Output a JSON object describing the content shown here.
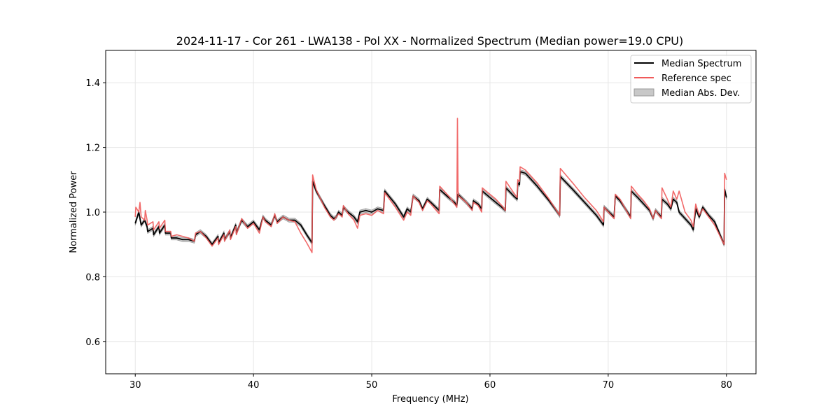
{
  "chart_data": {
    "type": "line",
    "title": "2024-11-17 - Cor 261 - LWA138 - Pol XX - Normalized Spectrum (Median power=19.0 CPU)",
    "xlabel": "Frequency (MHz)",
    "ylabel": "Normalized Power",
    "xlim": [
      27.5,
      82.5
    ],
    "ylim": [
      0.5,
      1.5
    ],
    "xticks": [
      30,
      40,
      50,
      60,
      70,
      80
    ],
    "yticks": [
      0.6,
      0.8,
      1.0,
      1.2,
      1.4
    ],
    "xtick_labels": [
      "30",
      "40",
      "50",
      "60",
      "70",
      "80"
    ],
    "ytick_labels": [
      "0.6",
      "0.8",
      "1.0",
      "1.2",
      "1.4"
    ],
    "grid": true,
    "legend_position": "top-right",
    "legend": [
      "Median Spectrum",
      "Reference spec",
      "Median Abs. Dev."
    ],
    "mad_width": 0.006,
    "series": [
      {
        "name": "Median Spectrum",
        "color": "#000000",
        "x": [
          30.0,
          30.3,
          30.5,
          30.8,
          31.0,
          31.05,
          31.5,
          31.55,
          32.0,
          32.05,
          32.5,
          32.55,
          33.0,
          33.05,
          33.5,
          34.0,
          34.5,
          35.0,
          35.1,
          35.5,
          36.0,
          36.5,
          37.0,
          37.05,
          37.5,
          37.55,
          38.0,
          38.05,
          38.5,
          38.55,
          39.0,
          39.5,
          40.0,
          40.5,
          40.8,
          41.0,
          41.5,
          41.8,
          42.0,
          42.5,
          43.0,
          43.5,
          44.0,
          44.5,
          44.95,
          45.0,
          45.3,
          46.0,
          46.5,
          46.8,
          47.0,
          47.2,
          47.5,
          47.6,
          48.0,
          48.5,
          48.8,
          49.0,
          49.5,
          50.0,
          50.5,
          51.0,
          51.1,
          52.0,
          52.7,
          53.0,
          53.3,
          53.5,
          54.0,
          54.3,
          54.7,
          55.0,
          55.7,
          55.75,
          56.5,
          57.0,
          57.2,
          57.3,
          58.0,
          58.5,
          58.6,
          59.0,
          59.3,
          59.35,
          60.0,
          60.5,
          61.0,
          61.3,
          61.35,
          62.0,
          62.3,
          62.35,
          62.5,
          62.55,
          63.0,
          64.0,
          65.0,
          65.9,
          65.95,
          67.0,
          68.0,
          69.0,
          69.6,
          69.65,
          70.5,
          70.6,
          71.0,
          71.9,
          71.95,
          72.5,
          73.0,
          73.5,
          73.8,
          74.0,
          74.5,
          74.55,
          75.0,
          75.3,
          75.5,
          75.8,
          76.0,
          76.5,
          77.0,
          77.2,
          77.4,
          77.7,
          78.0,
          78.5,
          79.0,
          79.8,
          79.85,
          80.0
        ],
        "values": [
          0.965,
          1.0,
          0.96,
          0.975,
          0.955,
          0.94,
          0.95,
          0.93,
          0.955,
          0.935,
          0.96,
          0.935,
          0.935,
          0.92,
          0.92,
          0.915,
          0.915,
          0.91,
          0.93,
          0.94,
          0.925,
          0.9,
          0.925,
          0.905,
          0.935,
          0.915,
          0.94,
          0.92,
          0.96,
          0.935,
          0.975,
          0.955,
          0.97,
          0.945,
          0.985,
          0.975,
          0.96,
          0.99,
          0.97,
          0.985,
          0.975,
          0.975,
          0.96,
          0.93,
          0.905,
          1.095,
          1.065,
          1.02,
          0.99,
          0.98,
          0.985,
          1.0,
          0.99,
          1.015,
          1.0,
          0.985,
          0.97,
          1.0,
          1.005,
          1.0,
          1.01,
          1.005,
          1.065,
          1.025,
          0.985,
          1.01,
          1.0,
          1.05,
          1.035,
          1.01,
          1.04,
          1.03,
          1.005,
          1.07,
          1.045,
          1.03,
          1.02,
          1.055,
          1.03,
          1.01,
          1.035,
          1.025,
          1.01,
          1.065,
          1.045,
          1.03,
          1.015,
          1.005,
          1.075,
          1.05,
          1.04,
          1.09,
          1.085,
          1.125,
          1.12,
          1.08,
          1.035,
          0.99,
          1.11,
          1.07,
          1.03,
          0.99,
          0.96,
          1.015,
          0.985,
          1.05,
          1.035,
          0.985,
          1.065,
          1.045,
          1.025,
          1.005,
          0.98,
          1.005,
          0.985,
          1.04,
          1.025,
          1.01,
          1.04,
          1.03,
          1.0,
          0.98,
          0.96,
          0.945,
          1.01,
          0.985,
          1.015,
          0.99,
          0.97,
          0.9,
          1.07,
          1.045
        ]
      },
      {
        "name": "Reference spec",
        "color": "#f05a5a",
        "x": [
          30.0,
          30.05,
          30.3,
          30.4,
          30.5,
          30.8,
          30.85,
          31.0,
          31.05,
          31.5,
          31.55,
          32.0,
          32.05,
          32.5,
          32.55,
          33.0,
          33.05,
          33.5,
          34.0,
          34.5,
          35.0,
          35.1,
          35.5,
          36.0,
          36.5,
          37.0,
          37.05,
          37.5,
          37.55,
          38.0,
          38.05,
          38.5,
          38.55,
          39.0,
          39.5,
          40.0,
          40.5,
          40.8,
          41.0,
          41.5,
          41.8,
          42.0,
          42.5,
          43.0,
          43.5,
          44.0,
          44.5,
          44.95,
          45.0,
          45.3,
          46.0,
          46.5,
          46.8,
          47.0,
          47.2,
          47.5,
          47.6,
          48.0,
          48.5,
          48.8,
          49.0,
          49.5,
          50.0,
          50.5,
          51.0,
          51.1,
          52.0,
          52.7,
          53.0,
          53.3,
          53.5,
          54.0,
          54.3,
          54.7,
          55.0,
          55.7,
          55.75,
          56.5,
          57.0,
          57.2,
          57.25,
          57.3,
          57.35,
          58.0,
          58.5,
          58.6,
          59.0,
          59.3,
          59.35,
          60.0,
          60.5,
          61.0,
          61.3,
          61.35,
          62.0,
          62.3,
          62.35,
          62.5,
          62.55,
          63.0,
          64.0,
          65.0,
          65.9,
          65.95,
          67.0,
          68.0,
          69.0,
          69.6,
          69.65,
          70.5,
          70.6,
          71.0,
          71.9,
          71.95,
          72.5,
          73.0,
          73.5,
          73.8,
          74.0,
          74.5,
          74.55,
          75.0,
          75.3,
          75.5,
          75.8,
          76.0,
          76.5,
          77.0,
          77.2,
          77.4,
          77.7,
          78.0,
          78.5,
          79.0,
          79.8,
          79.85,
          80.0
        ],
        "values": [
          0.985,
          1.015,
          1.0,
          1.03,
          0.985,
          0.975,
          1.005,
          0.975,
          0.96,
          0.97,
          0.945,
          0.97,
          0.95,
          0.975,
          0.94,
          0.94,
          0.925,
          0.93,
          0.925,
          0.92,
          0.91,
          0.935,
          0.94,
          0.92,
          0.895,
          0.92,
          0.9,
          0.93,
          0.91,
          0.945,
          0.915,
          0.955,
          0.93,
          0.98,
          0.95,
          0.965,
          0.935,
          0.985,
          0.97,
          0.955,
          0.995,
          0.965,
          0.985,
          0.975,
          0.97,
          0.935,
          0.905,
          0.875,
          1.115,
          1.07,
          1.015,
          0.985,
          0.975,
          0.985,
          0.995,
          0.985,
          1.02,
          0.995,
          0.975,
          0.95,
          0.99,
          0.995,
          0.99,
          1.005,
          0.995,
          1.06,
          1.015,
          0.975,
          1.0,
          0.99,
          1.05,
          1.03,
          1.005,
          1.035,
          1.025,
          0.995,
          1.08,
          1.05,
          1.025,
          1.015,
          1.29,
          1.065,
          1.05,
          1.03,
          1.005,
          1.03,
          1.02,
          1.0,
          1.075,
          1.055,
          1.04,
          1.02,
          1.005,
          1.095,
          1.06,
          1.045,
          1.1,
          1.095,
          1.14,
          1.13,
          1.09,
          1.04,
          0.99,
          1.135,
          1.09,
          1.045,
          1.005,
          0.97,
          1.015,
          0.98,
          1.055,
          1.04,
          0.98,
          1.08,
          1.055,
          1.035,
          1.01,
          0.98,
          1.005,
          0.98,
          1.075,
          1.04,
          1.015,
          1.065,
          1.04,
          1.065,
          1.0,
          0.975,
          0.955,
          1.025,
          0.99,
          1.01,
          0.985,
          0.96,
          0.9,
          1.12,
          1.1
        ]
      }
    ]
  }
}
